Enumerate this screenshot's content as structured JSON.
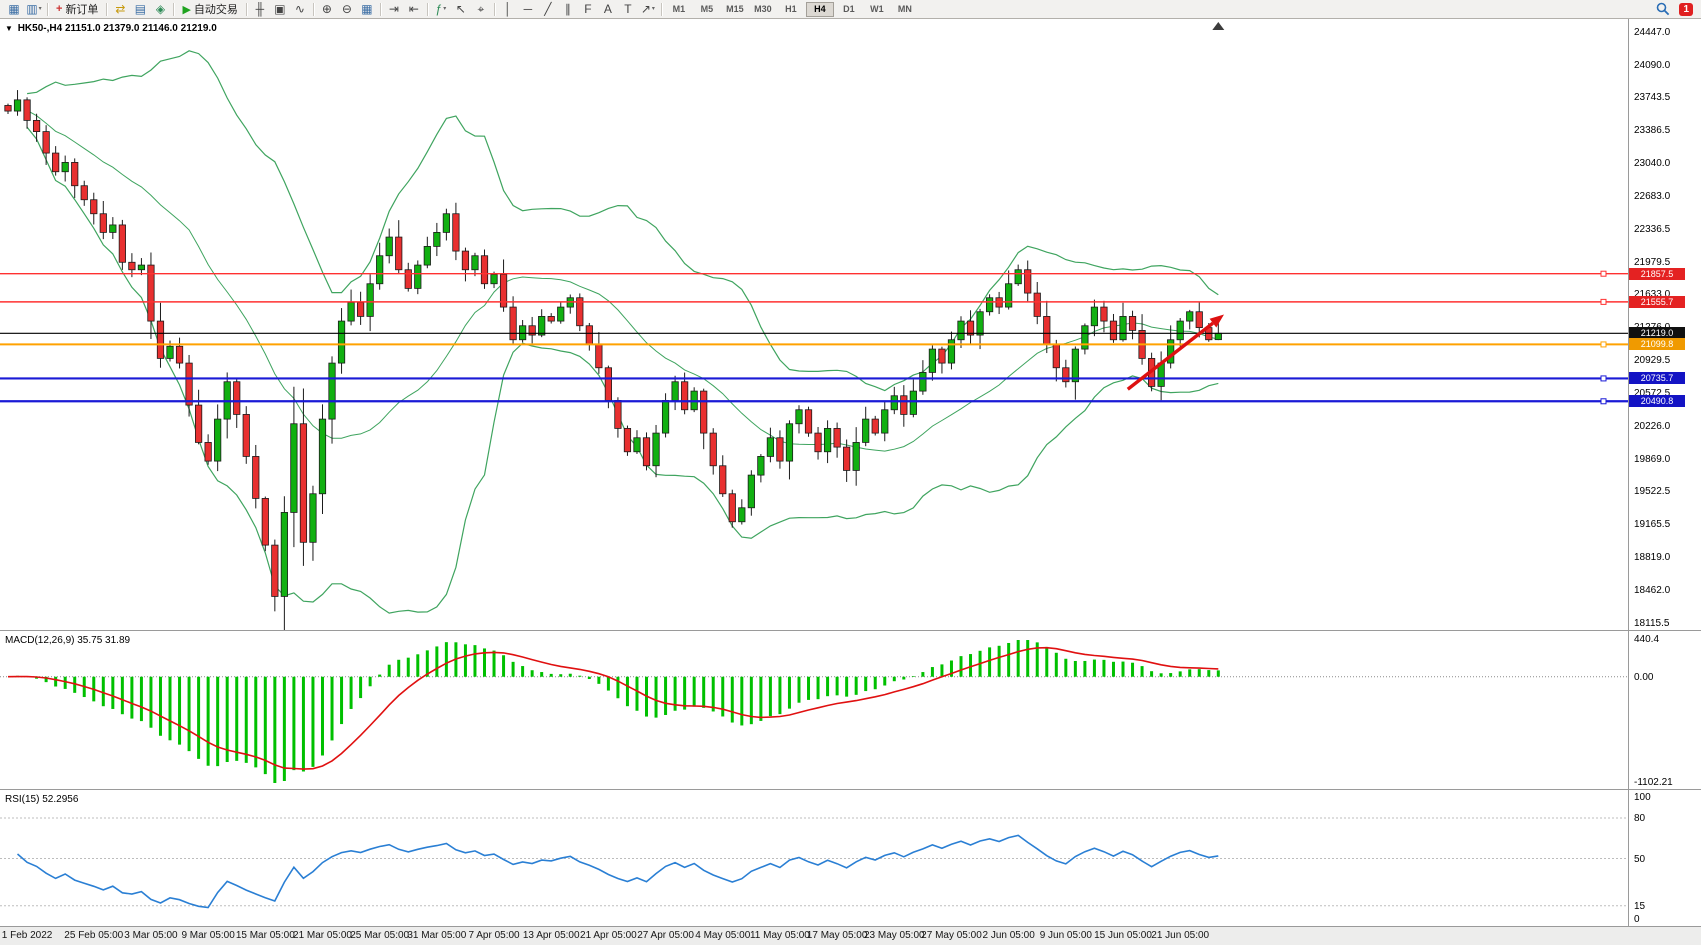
{
  "toolbar": {
    "new_order_label": "新订单",
    "auto_trading_label": "自动交易",
    "notification_count": "1",
    "items": [
      {
        "type": "icon",
        "name": "new-chart-icon",
        "glyph": "▦",
        "color": "#3b6ea5"
      },
      {
        "type": "icon",
        "name": "profiles-icon",
        "glyph": "▥",
        "color": "#3b6ea5",
        "caret": true
      },
      {
        "type": "sep"
      },
      {
        "type": "button",
        "name": "new-order-button",
        "glyph": "+",
        "glyph_color": "#cc3333",
        "label": "新订单"
      },
      {
        "type": "sep"
      },
      {
        "type": "icon",
        "name": "market-watch-icon",
        "glyph": "⇄",
        "color": "#c79a10"
      },
      {
        "type": "icon",
        "name": "data-window-icon",
        "glyph": "▤",
        "color": "#3b6ea5"
      },
      {
        "type": "icon",
        "name": "terminal-icon",
        "glyph": "◈",
        "color": "#2e8b57"
      },
      {
        "type": "sep"
      },
      {
        "type": "button",
        "name": "auto-trading-button",
        "glyph": "▶",
        "glyph_color": "#1fa31f",
        "label": "自动交易"
      },
      {
        "type": "sep"
      },
      {
        "type": "icon",
        "name": "bar-chart-icon",
        "glyph": "╫",
        "color": "#444444"
      },
      {
        "type": "icon",
        "name": "candlestick-chart-icon",
        "glyph": "▣",
        "color": "#444444"
      },
      {
        "type": "icon",
        "name": "line-chart-icon",
        "glyph": "∿",
        "color": "#444444"
      },
      {
        "type": "sep"
      },
      {
        "type": "icon",
        "name": "zoom-in-icon",
        "glyph": "⊕",
        "color": "#444444"
      },
      {
        "type": "icon",
        "name": "zoom-out-icon",
        "glyph": "⊖",
        "color": "#444444"
      },
      {
        "type": "icon",
        "name": "tile-windows-icon",
        "glyph": "▦",
        "color": "#3b6ea5"
      },
      {
        "type": "sep"
      },
      {
        "type": "icon",
        "name": "auto-scroll-icon",
        "glyph": "⇥",
        "color": "#444444"
      },
      {
        "type": "icon",
        "name": "chart-shift-icon",
        "glyph": "⇤",
        "color": "#444444"
      },
      {
        "type": "sep"
      },
      {
        "type": "icon",
        "name": "indicators-icon",
        "glyph": "ƒ",
        "color": "#2e8b57",
        "caret": true
      },
      {
        "type": "icon",
        "name": "cursor-icon",
        "glyph": "↖",
        "color": "#444444"
      },
      {
        "type": "icon",
        "name": "crosshair-icon",
        "glyph": "⌖",
        "color": "#444444"
      },
      {
        "type": "sep"
      },
      {
        "type": "icon",
        "name": "vertical-line-icon",
        "glyph": "│",
        "color": "#444444"
      },
      {
        "type": "icon",
        "name": "horizontal-line-icon",
        "glyph": "─",
        "color": "#444444"
      },
      {
        "type": "icon",
        "name": "trendline-icon",
        "glyph": "╱",
        "color": "#444444"
      },
      {
        "type": "icon",
        "name": "channel-icon",
        "glyph": "∥",
        "color": "#444444"
      },
      {
        "type": "icon",
        "name": "fibonacci-icon",
        "glyph": "F",
        "color": "#444444"
      },
      {
        "type": "icon",
        "name": "text-icon",
        "glyph": "A",
        "color": "#444444"
      },
      {
        "type": "icon",
        "name": "label-icon",
        "glyph": "T",
        "color": "#444444"
      },
      {
        "type": "icon",
        "name": "arrows-icon",
        "glyph": "↗",
        "color": "#444444",
        "caret": true
      },
      {
        "type": "sep"
      }
    ],
    "timeframes": [
      {
        "label": "M1"
      },
      {
        "label": "M5"
      },
      {
        "label": "M15"
      },
      {
        "label": "M30"
      },
      {
        "label": "H1"
      },
      {
        "label": "H4",
        "active": true
      },
      {
        "label": "D1"
      },
      {
        "label": "W1"
      },
      {
        "label": "MN"
      }
    ]
  },
  "chart": {
    "symbol_header": {
      "collapse_glyph": "▼",
      "symbol": "HK50-,H4",
      "ohlc": "21151.0 21379.0 21146.0 21219.0"
    },
    "price_axis_labels": [
      "24447.0",
      "24090.0",
      "23743.5",
      "23386.5",
      "23040.0",
      "22683.0",
      "22336.5",
      "21979.5",
      "21633.0",
      "21276.0",
      "20929.5",
      "20572.5",
      "20226.0",
      "19869.0",
      "19522.5",
      "19165.5",
      "18819.0",
      "18462.0",
      "18115.5"
    ],
    "levels": [
      {
        "price": 21857.5,
        "label": "21857.5",
        "color": "#ff3030",
        "width": 1.4,
        "tag_bg": "#e42222"
      },
      {
        "price": 21555.7,
        "label": "21555.7",
        "color": "#ff3030",
        "width": 1.4,
        "tag_bg": "#e42222"
      },
      {
        "price": 21219.0,
        "label": "21219.0",
        "color": "#000000",
        "width": 1.2,
        "tag_bg": "#101010"
      },
      {
        "price": 21099.8,
        "label": "21099.8",
        "color": "#ffa200",
        "width": 2,
        "tag_bg": "#f09a00"
      },
      {
        "price": 20735.7,
        "label": "20735.7",
        "color": "#1a1ad6",
        "width": 2.2,
        "tag_bg": "#1313c4"
      },
      {
        "price": 20490.8,
        "label": "20490.8",
        "color": "#1a1ad6",
        "width": 2.2,
        "tag_bg": "#1313c4"
      }
    ],
    "arrow": {
      "from_bar": 117.5,
      "from_price": 20620,
      "to_bar": 127.6,
      "to_price": 21420,
      "color": "#dd1111"
    },
    "shift_marker_bar": 127
  },
  "colors": {
    "candle_up": "#11b011",
    "candle_down": "#e83030",
    "candle_outline": "#1b1b1b",
    "bollinger": "#3fa45f",
    "macd_hist": "#00c000",
    "macd_signal": "#e01010",
    "rsi_line": "#2a7fd4"
  },
  "macd_panel": {
    "label": "MACD(12,26,9) 35.75 31.89",
    "axis_labels": [
      "440.4",
      "0.00",
      "-1102.21"
    ]
  },
  "rsi_panel": {
    "label": "RSI(15) 52.2956",
    "axis_labels": [
      "100",
      "80",
      "50",
      "15",
      "0"
    ],
    "level_lines": [
      80,
      50,
      15
    ]
  },
  "time_axis": {
    "label_bars": [
      2,
      9,
      15,
      21,
      27,
      33,
      39,
      45,
      51,
      57,
      63,
      69,
      75,
      81,
      87,
      93,
      99,
      105,
      111,
      117,
      123
    ]
  },
  "chart_data": {
    "type": "candlestick",
    "symbol": "HK50",
    "timeframe": "H4",
    "title": "HK50-,H4",
    "current_bar": {
      "open": 21151.0,
      "high": 21379.0,
      "low": 21146.0,
      "close": 21219.0
    },
    "y_axis_range": [
      18115.5,
      24447.0
    ],
    "x_labels": [
      "1 Feb 2022",
      "25 Feb 05:00",
      "3 Mar 05:00",
      "9 Mar 05:00",
      "15 Mar 05:00",
      "21 Mar 05:00",
      "25 Mar 05:00",
      "31 Mar 05:00",
      "7 Apr 05:00",
      "13 Apr 05:00",
      "21 Apr 05:00",
      "27 Apr 05:00",
      "4 May 05:00",
      "11 May 05:00",
      "17 May 05:00",
      "23 May 05:00",
      "27 May 05:00",
      "2 Jun 05:00",
      "9 Jun 05:00",
      "15 Jun 05:00",
      "21 Jun 05:00"
    ],
    "closes": [
      23600,
      23720,
      23500,
      23380,
      23150,
      22950,
      23050,
      22800,
      22650,
      22500,
      22300,
      22380,
      21980,
      21900,
      21950,
      21350,
      20950,
      21080,
      20900,
      20450,
      20050,
      19850,
      20300,
      20700,
      20350,
      19900,
      19450,
      18950,
      18400,
      19300,
      20250,
      18980,
      19500,
      20300,
      20900,
      21350,
      21550,
      21400,
      21750,
      22050,
      22250,
      21900,
      21700,
      21950,
      22150,
      22300,
      22500,
      22100,
      21900,
      22050,
      21750,
      21850,
      21500,
      21150,
      21300,
      21200,
      21400,
      21350,
      21500,
      21600,
      21300,
      21100,
      20850,
      20500,
      20200,
      19950,
      20100,
      19800,
      20150,
      20500,
      20700,
      20400,
      20600,
      20150,
      19800,
      19500,
      19200,
      19350,
      19700,
      19900,
      20100,
      19850,
      20250,
      20400,
      20150,
      19950,
      20200,
      20000,
      19750,
      20050,
      20300,
      20150,
      20400,
      20550,
      20350,
      20600,
      20800,
      21050,
      20900,
      21150,
      21350,
      21200,
      21450,
      21600,
      21500,
      21750,
      21900,
      21650,
      21400,
      21100,
      20850,
      20700,
      21050,
      21300,
      21500,
      21350,
      21150,
      21400,
      21250,
      20950,
      20650,
      20900,
      21150,
      21350,
      21450,
      21280,
      21150,
      21219
    ],
    "horizontal_levels": [
      21857.5,
      21555.7,
      21219.0,
      21099.8,
      20735.7,
      20490.8
    ],
    "indicators": [
      {
        "type": "bollinger",
        "period": 20,
        "deviation": 2
      },
      {
        "type": "macd",
        "fast": 12,
        "slow": 26,
        "signal": 9,
        "current_values": [
          35.75,
          31.89
        ],
        "y_axis": [
          440.4,
          0.0,
          -1102.21
        ]
      },
      {
        "type": "rsi",
        "period": 15,
        "current_value": 52.2956,
        "levels": [
          80,
          50,
          15
        ]
      }
    ]
  }
}
